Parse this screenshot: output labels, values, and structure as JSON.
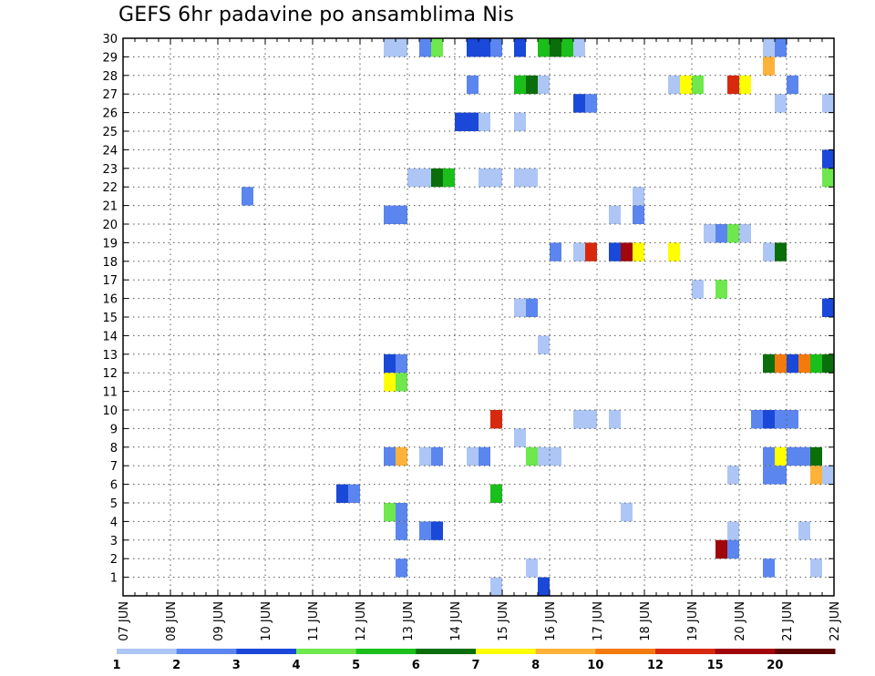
{
  "chart_data": {
    "type": "heatmap",
    "title": "GEFS 6hr padavine po ansamblima Nis",
    "xlabel": "",
    "ylabel": "",
    "x_ticks": [
      "07 JUN",
      "08 JUN",
      "09 JUN",
      "10 JUN",
      "11 JUN",
      "12 JUN",
      "13 JUN",
      "14 JUN",
      "15 JUN",
      "16 JUN",
      "17 JUN",
      "18 JUN",
      "19 JUN",
      "20 JUN",
      "21 JUN",
      "22 JUN"
    ],
    "x_steps_per_day": 4,
    "xlim_steps": [
      0,
      60
    ],
    "y_ticks": [
      1,
      2,
      3,
      4,
      5,
      6,
      7,
      8,
      9,
      10,
      11,
      12,
      13,
      14,
      15,
      16,
      17,
      18,
      19,
      20,
      21,
      22,
      23,
      24,
      25,
      26,
      27,
      28,
      29,
      30
    ],
    "ylim": [
      0,
      30
    ],
    "grid": true,
    "colorbar": {
      "placement": "bottom",
      "labels": [
        "1",
        "2",
        "3",
        "4",
        "5",
        "6",
        "7",
        "8",
        "10",
        "12",
        "15",
        "20"
      ],
      "colors": [
        "#adc6f5",
        "#5b86ef",
        "#1a48d8",
        "#6ee84d",
        "#1bbf1b",
        "#0a6e0a",
        "#ffff00",
        "#ffb23a",
        "#f47a0c",
        "#d8280d",
        "#a0060a",
        "#5c0505"
      ]
    },
    "cells": [
      [
        22.5,
        30,
        0
      ],
      [
        23.5,
        30,
        0
      ],
      [
        25.5,
        30,
        1
      ],
      [
        26.5,
        30,
        3
      ],
      [
        29.5,
        30,
        2
      ],
      [
        30.5,
        30,
        2
      ],
      [
        31.5,
        30,
        1
      ],
      [
        33.5,
        30,
        2
      ],
      [
        35.5,
        30,
        4
      ],
      [
        36.5,
        30,
        5
      ],
      [
        37.5,
        30,
        4
      ],
      [
        38.5,
        30,
        0
      ],
      [
        54.5,
        30,
        0
      ],
      [
        55.5,
        30,
        1
      ],
      [
        54.5,
        29,
        7
      ],
      [
        29.5,
        28,
        1
      ],
      [
        33.5,
        28,
        4
      ],
      [
        34.5,
        28,
        5
      ],
      [
        35.5,
        28,
        0
      ],
      [
        46.5,
        28,
        0
      ],
      [
        47.5,
        28,
        6
      ],
      [
        48.5,
        28,
        3
      ],
      [
        51.5,
        28,
        9
      ],
      [
        52.5,
        28,
        6
      ],
      [
        56.5,
        28,
        1
      ],
      [
        38.5,
        27,
        2
      ],
      [
        39.5,
        27,
        1
      ],
      [
        55.5,
        27,
        0
      ],
      [
        59.5,
        27,
        0
      ],
      [
        28.5,
        26,
        2
      ],
      [
        29.5,
        26,
        2
      ],
      [
        30.5,
        26,
        0
      ],
      [
        33.5,
        26,
        0
      ],
      [
        59.5,
        24,
        2
      ],
      [
        24.5,
        23,
        0
      ],
      [
        25.5,
        23,
        0
      ],
      [
        26.5,
        23,
        5
      ],
      [
        27.5,
        23,
        4
      ],
      [
        30.5,
        23,
        0
      ],
      [
        31.5,
        23,
        0
      ],
      [
        33.5,
        23,
        0
      ],
      [
        34.5,
        23,
        0
      ],
      [
        59.5,
        23,
        3
      ],
      [
        10.5,
        22,
        1
      ],
      [
        43.5,
        22,
        0
      ],
      [
        22.5,
        21,
        1
      ],
      [
        23.5,
        21,
        1
      ],
      [
        41.5,
        21,
        0
      ],
      [
        43.5,
        21,
        1
      ],
      [
        49.5,
        20,
        0
      ],
      [
        50.5,
        20,
        1
      ],
      [
        51.5,
        20,
        3
      ],
      [
        52.5,
        20,
        0
      ],
      [
        36.5,
        19,
        1
      ],
      [
        38.5,
        19,
        0
      ],
      [
        39.5,
        19,
        9
      ],
      [
        41.5,
        19,
        2
      ],
      [
        42.5,
        19,
        10
      ],
      [
        43.5,
        19,
        6
      ],
      [
        46.5,
        19,
        6
      ],
      [
        54.5,
        19,
        0
      ],
      [
        55.5,
        19,
        5
      ],
      [
        48.5,
        17,
        0
      ],
      [
        50.5,
        17,
        3
      ],
      [
        59.5,
        16,
        2
      ],
      [
        33.5,
        16,
        0
      ],
      [
        34.5,
        16,
        1
      ],
      [
        35.5,
        14,
        0
      ],
      [
        22.5,
        13,
        2
      ],
      [
        23.5,
        13,
        1
      ],
      [
        54.5,
        13,
        5
      ],
      [
        55.5,
        13,
        8
      ],
      [
        56.5,
        13,
        2
      ],
      [
        57.5,
        13,
        8
      ],
      [
        58.5,
        13,
        4
      ],
      [
        59.5,
        13,
        5
      ],
      [
        22.5,
        12,
        6
      ],
      [
        23.5,
        12,
        3
      ],
      [
        31.5,
        10,
        9
      ],
      [
        38.5,
        10,
        0
      ],
      [
        39.5,
        10,
        0
      ],
      [
        41.5,
        10,
        0
      ],
      [
        53.5,
        10,
        1
      ],
      [
        54.5,
        10,
        2
      ],
      [
        55.5,
        10,
        1
      ],
      [
        56.5,
        10,
        1
      ],
      [
        33.5,
        9,
        0
      ],
      [
        22.5,
        8,
        1
      ],
      [
        23.5,
        8,
        7
      ],
      [
        25.5,
        8,
        0
      ],
      [
        26.5,
        8,
        1
      ],
      [
        29.5,
        8,
        0
      ],
      [
        30.5,
        8,
        1
      ],
      [
        34.5,
        8,
        3
      ],
      [
        35.5,
        8,
        0
      ],
      [
        36.5,
        8,
        0
      ],
      [
        54.5,
        8,
        1
      ],
      [
        55.5,
        8,
        6
      ],
      [
        56.5,
        8,
        1
      ],
      [
        57.5,
        8,
        1
      ],
      [
        58.5,
        8,
        5
      ],
      [
        51.5,
        7,
        0
      ],
      [
        54.5,
        7,
        1
      ],
      [
        55.5,
        7,
        1
      ],
      [
        58.5,
        7,
        7
      ],
      [
        59.5,
        7,
        0
      ],
      [
        18.5,
        6,
        2
      ],
      [
        19.5,
        6,
        1
      ],
      [
        31.5,
        6,
        4
      ],
      [
        22.5,
        5,
        3
      ],
      [
        23.5,
        5,
        1
      ],
      [
        42.5,
        5,
        0
      ],
      [
        23.5,
        4,
        1
      ],
      [
        25.5,
        4,
        1
      ],
      [
        26.5,
        4,
        2
      ],
      [
        51.5,
        4,
        0
      ],
      [
        57.5,
        4,
        0
      ],
      [
        50.5,
        3,
        10
      ],
      [
        51.5,
        3,
        1
      ],
      [
        23.5,
        2,
        1
      ],
      [
        34.5,
        2,
        0
      ],
      [
        54.5,
        2,
        1
      ],
      [
        58.5,
        2,
        0
      ],
      [
        31.5,
        1,
        0
      ],
      [
        35.5,
        1,
        2
      ]
    ]
  }
}
